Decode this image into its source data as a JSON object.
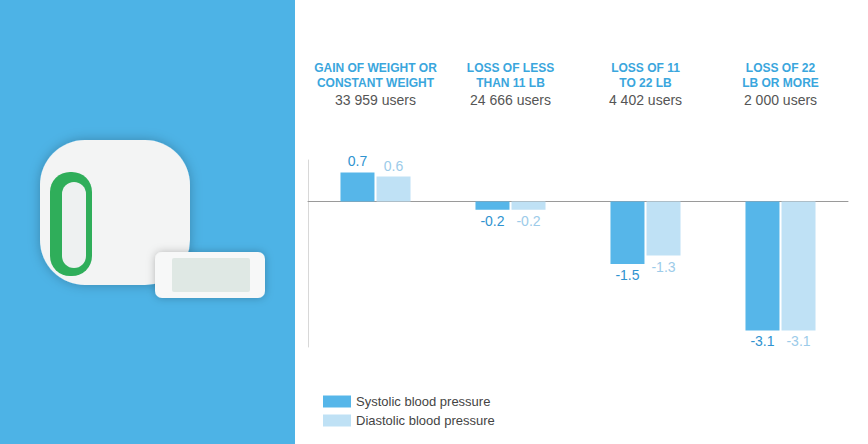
{
  "chart_data": {
    "type": "bar",
    "categories": [
      "GAIN OF WEIGHT OR CONSTANT WEIGHT",
      "LOSS OF LESS THAN 11 LB",
      "LOSS OF 11 TO 22 LB",
      "LOSS OF 22 LB OR MORE"
    ],
    "annotations": [
      "33 959 users",
      "24 666 users",
      "4 402 users",
      "2 000 users"
    ],
    "series": [
      {
        "name": "Systolic blood pressure",
        "color": "#56b6e9",
        "values": [
          0.7,
          -0.2,
          -1.5,
          -3.1
        ]
      },
      {
        "name": "Diastolic blood pressure",
        "color": "#bfe1f5",
        "values": [
          0.6,
          -0.2,
          -1.3,
          -3.1
        ]
      }
    ],
    "ylim": [
      -3.5,
      1.0
    ],
    "tick_labels": false,
    "data_labels": true,
    "legend": "bottom-left",
    "grid": false
  }
}
